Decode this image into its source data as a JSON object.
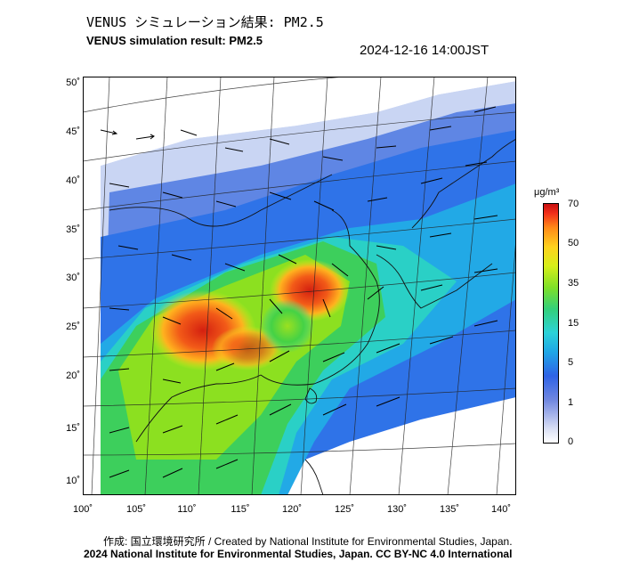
{
  "title_jp": "VENUS シミュレーション結果: PM2.5",
  "title_en": "VENUS simulation result: PM2.5",
  "timestamp": "2024-12-16 14:00JST",
  "lat_ticks": [
    "50˚",
    "45˚",
    "40˚",
    "35˚",
    "30˚",
    "25˚",
    "20˚",
    "15˚",
    "10˚"
  ],
  "lon_ticks": [
    "100˚",
    "105˚",
    "110˚",
    "115˚",
    "120˚",
    "125˚",
    "130˚",
    "135˚",
    "140˚"
  ],
  "colorbar": {
    "unit": "μg/m³",
    "labels": [
      "70",
      "50",
      "35",
      "15",
      "5",
      "1",
      "0"
    ]
  },
  "credit_line1": "作成: 国立環境研究所 / Created by National Institute for Environmental Studies, Japan.",
  "credit_line2": "2024 National Institute for Environmental Studies, Japan. CC BY-NC 4.0 International"
}
